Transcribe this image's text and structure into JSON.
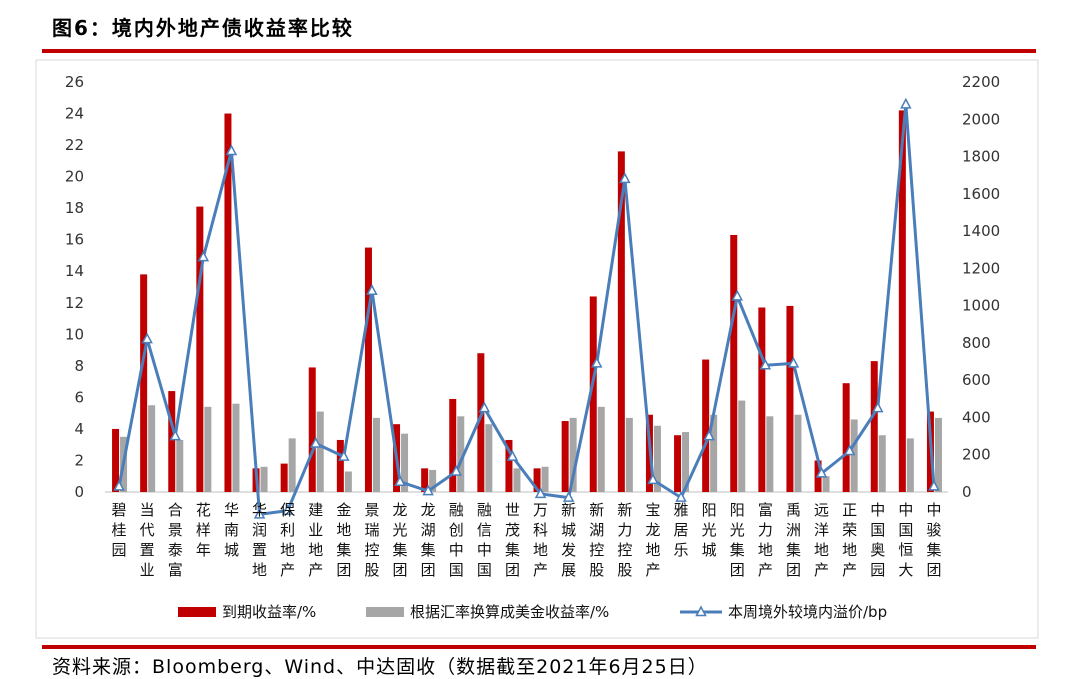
{
  "figure": {
    "title": "图6：境内外地产债收益率比较",
    "source": "资料来源：Bloomberg、Wind、中达固收（数据截至2021年6月25日）"
  },
  "colors": {
    "bar1": "#c00000",
    "bar2": "#a6a6a6",
    "line": "#4a7ebb",
    "rule": "#c00000"
  },
  "chart_data": {
    "type": "bar",
    "categories": [
      "碧桂园",
      "当代置业",
      "合景泰富",
      "花样年",
      "华南城",
      "华润置地",
      "保利地产",
      "建业地产",
      "金地集团",
      "景瑞控股",
      "龙光集团",
      "龙湖集团",
      "融创中国",
      "融信中国",
      "世茂集团",
      "万科地产",
      "新城发展",
      "新湖控股",
      "新力控股",
      "宝龙地产",
      "雅居乐",
      "阳光城",
      "阳光集团",
      "富力地产",
      "禹洲集团",
      "远洋地产",
      "正荣地产",
      "中国奥园",
      "中国恒大",
      "中骏集团"
    ],
    "series": [
      {
        "name": "到期收益率/%",
        "type": "bar",
        "axis": "left",
        "values": [
          4.0,
          13.8,
          6.4,
          18.1,
          24.0,
          1.5,
          1.8,
          7.9,
          3.3,
          15.5,
          4.3,
          1.5,
          5.9,
          8.8,
          3.3,
          1.5,
          4.5,
          12.4,
          21.6,
          4.9,
          3.6,
          8.4,
          16.3,
          11.7,
          11.8,
          2.0,
          6.9,
          8.3,
          24.2,
          5.1
        ]
      },
      {
        "name": "根据汇率换算成美金收益率/%",
        "type": "bar",
        "axis": "left",
        "values": [
          3.5,
          5.5,
          3.3,
          5.4,
          5.6,
          1.6,
          3.4,
          5.1,
          1.3,
          4.7,
          3.7,
          1.4,
          4.8,
          4.3,
          1.5,
          1.6,
          4.7,
          5.4,
          4.7,
          4.2,
          3.8,
          4.9,
          5.8,
          4.8,
          4.9,
          1.0,
          4.6,
          3.6,
          3.4,
          4.7
        ]
      },
      {
        "name": "本周境外较境内溢价/bp",
        "type": "line",
        "axis": "right",
        "values": [
          30,
          820,
          300,
          1260,
          1830,
          -120,
          -100,
          260,
          190,
          1080,
          55,
          5,
          110,
          450,
          190,
          -10,
          -30,
          690,
          1680,
          65,
          -30,
          300,
          1050,
          680,
          690,
          100,
          220,
          450,
          2080,
          30
        ]
      }
    ],
    "yleft": {
      "min": 0,
      "max": 26,
      "ticks": [
        0,
        2,
        4,
        6,
        8,
        10,
        12,
        14,
        16,
        18,
        20,
        22,
        24,
        26
      ]
    },
    "yright": {
      "min": 0,
      "max": 2200,
      "ticks": [
        0,
        200,
        400,
        600,
        800,
        1000,
        1200,
        1400,
        1600,
        1800,
        2000,
        2200
      ]
    },
    "grid": false,
    "legend_position": "bottom"
  }
}
